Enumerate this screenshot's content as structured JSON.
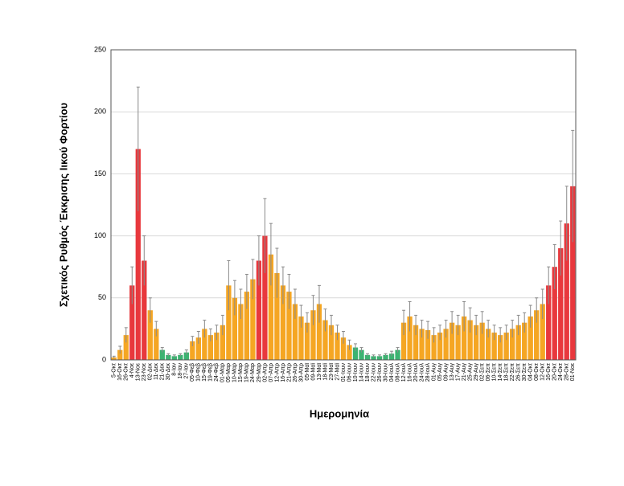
{
  "chart_data": {
    "type": "bar",
    "y_label": "Σχετικός Ρυθμός Έκκρισης Ιικού Φορτίου",
    "x_label": "Ημερομηνία",
    "categories": [
      "5-Οκτ",
      "16-Οκτ",
      "26-Οκτ",
      "4-Νοε",
      "13-Νοε",
      "23-Νοε",
      "02-Δεκ",
      "11-Δεκ",
      "21-Δεκ",
      "30-Δεκ",
      "8-Ιαν",
      "18-Ιαν",
      "27-Ιαν",
      "05-Φεβ",
      "10-Φεβ",
      "15-Φεβ",
      "19-Φεβ",
      "24-Φεβ",
      "01-Μαρ",
      "05-Μαρ",
      "10-Μαρ",
      "15-Μαρ",
      "19-Μαρ",
      "24-Μαρ",
      "29-Μαρ",
      "02-Απρ",
      "07-Απρ",
      "12-Απρ",
      "16-Απρ",
      "21-Απρ",
      "26-Απρ",
      "30-Απρ",
      "05-Μαϊ",
      "09-Μαϊ",
      "13-Μαϊ",
      "18-Μαϊ",
      "23-Μαϊ",
      "27-Μαϊ",
      "01-Ιουν",
      "06-Ιουν",
      "10-Ιουν",
      "14-Ιουν",
      "18-Ιουν",
      "22-Ιουν",
      "26-Ιουν",
      "30-Ιουν",
      "04-Ιουλ",
      "08-Ιουλ",
      "12-Ιουλ",
      "16-Ιουλ",
      "20-Ιουλ",
      "24-Ιουλ",
      "28-Ιουλ",
      "01-Αυγ",
      "05-Αυγ",
      "09-Αυγ",
      "13-Αυγ",
      "17-Αυγ",
      "21-Αυγ",
      "25-Αυγ",
      "29-Αυγ",
      "02-Σεπ",
      "06-Σεπ",
      "10-Σεπ",
      "14-Σεπ",
      "18-Σεπ",
      "22-Σεπ",
      "26-Σεπ",
      "30-Σεπ",
      "04-Οκτ",
      "08-Οκτ",
      "12-Οκτ",
      "16-Οκτ",
      "20-Οκτ",
      "24-Οκτ",
      "28-Οκτ",
      "01-Νοε"
    ],
    "values": [
      2,
      8,
      20,
      60,
      170,
      80,
      40,
      25,
      8,
      4,
      3,
      4,
      6,
      15,
      18,
      25,
      20,
      22,
      28,
      60,
      50,
      45,
      55,
      65,
      80,
      100,
      85,
      70,
      60,
      55,
      45,
      35,
      30,
      40,
      45,
      32,
      28,
      22,
      18,
      12,
      10,
      8,
      4,
      3,
      3,
      4,
      5,
      8,
      30,
      35,
      28,
      25,
      24,
      20,
      22,
      25,
      30,
      28,
      35,
      32,
      28,
      30,
      25,
      22,
      20,
      22,
      25,
      28,
      30,
      35,
      40,
      45,
      60,
      75,
      90,
      110,
      140
    ],
    "errors": [
      1,
      3,
      6,
      15,
      50,
      20,
      10,
      6,
      2,
      1,
      1,
      1,
      2,
      4,
      5,
      7,
      5,
      6,
      8,
      20,
      14,
      12,
      14,
      16,
      20,
      30,
      25,
      20,
      15,
      14,
      12,
      9,
      8,
      12,
      15,
      9,
      8,
      6,
      5,
      4,
      3,
      2,
      1,
      1,
      1,
      1,
      2,
      2,
      10,
      12,
      8,
      7,
      7,
      6,
      6,
      7,
      9,
      8,
      12,
      10,
      8,
      9,
      7,
      6,
      6,
      6,
      7,
      8,
      8,
      9,
      10,
      12,
      15,
      18,
      22,
      30,
      45
    ],
    "colors": [
      "#f5a623",
      "#f5a623",
      "#f5a623",
      "#e8383d",
      "#e8383d",
      "#e8383d",
      "#f5a623",
      "#f5a623",
      "#3cb371",
      "#3cb371",
      "#3cb371",
      "#3cb371",
      "#3cb371",
      "#f5a623",
      "#f5a623",
      "#f5a623",
      "#f5a623",
      "#f5a623",
      "#f5a623",
      "#f5a623",
      "#f5a623",
      "#f5a623",
      "#f5a623",
      "#f5a623",
      "#e8383d",
      "#e8383d",
      "#f5a623",
      "#f5a623",
      "#f5a623",
      "#f5a623",
      "#f5a623",
      "#f5a623",
      "#f5a623",
      "#f5a623",
      "#f5a623",
      "#f5a623",
      "#f5a623",
      "#f5a623",
      "#f5a623",
      "#f5a623",
      "#3cb371",
      "#3cb371",
      "#3cb371",
      "#3cb371",
      "#3cb371",
      "#3cb371",
      "#3cb371",
      "#3cb371",
      "#f5a623",
      "#f5a623",
      "#f5a623",
      "#f5a623",
      "#f5a623",
      "#f5a623",
      "#f5a623",
      "#f5a623",
      "#f5a623",
      "#f5a623",
      "#f5a623",
      "#f5a623",
      "#f5a623",
      "#f5a623",
      "#f5a623",
      "#f5a623",
      "#f5a623",
      "#f5a623",
      "#f5a623",
      "#f5a623",
      "#f5a623",
      "#f5a623",
      "#f5a623",
      "#f5a623",
      "#e8383d",
      "#e8383d",
      "#e8383d",
      "#e8383d",
      "#e8383d"
    ],
    "ylim": [
      0,
      250
    ],
    "yticks": [
      0,
      50,
      100,
      150,
      200,
      250
    ],
    "grid": true
  }
}
